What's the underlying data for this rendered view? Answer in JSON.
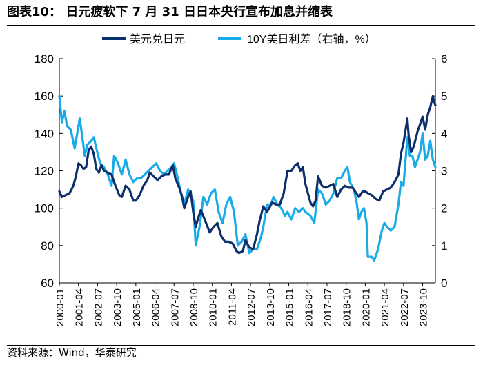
{
  "title": "图表10：   日元疲软下 7 月 31 日日本央行宣布加息并缩表",
  "source": "资料来源：Wind，华泰研究",
  "colors": {
    "usdjpy": "#0b2f6b",
    "spread": "#19aae8"
  },
  "chart_data": {
    "type": "line",
    "legend_position": "top",
    "grid": false,
    "x_ticks": [
      "2000-01",
      "2001-04",
      "2002-07",
      "2003-10",
      "2005-01",
      "2006-04",
      "2007-07",
      "2008-10",
      "2010-01",
      "2011-04",
      "2012-07",
      "2013-10",
      "2015-01",
      "2016-04",
      "2017-07",
      "2018-10",
      "2020-01",
      "2021-04",
      "2022-07",
      "2023-10"
    ],
    "x_range": [
      "2000-01",
      "2024-08"
    ],
    "y_left": {
      "min": 60,
      "max": 180,
      "ticks": [
        60,
        80,
        100,
        120,
        140,
        160,
        180
      ]
    },
    "y_right": {
      "min": 0,
      "max": 6,
      "ticks": [
        0,
        1,
        2,
        3,
        4,
        5,
        6
      ]
    },
    "series": [
      {
        "name": "美元兑日元",
        "axis": "left",
        "points": [
          [
            "2000-01",
            109
          ],
          [
            "2000-03",
            106
          ],
          [
            "2000-06",
            107
          ],
          [
            "2000-09",
            108
          ],
          [
            "2000-12",
            112
          ],
          [
            "2001-02",
            117
          ],
          [
            "2001-04",
            124
          ],
          [
            "2001-06",
            123
          ],
          [
            "2001-08",
            121
          ],
          [
            "2001-10",
            122
          ],
          [
            "2001-12",
            131
          ],
          [
            "2002-02",
            133
          ],
          [
            "2002-04",
            129
          ],
          [
            "2002-06",
            121
          ],
          [
            "2002-08",
            119
          ],
          [
            "2002-10",
            123
          ],
          [
            "2002-12",
            120
          ],
          [
            "2003-03",
            119
          ],
          [
            "2003-06",
            118
          ],
          [
            "2003-09",
            112
          ],
          [
            "2003-12",
            107
          ],
          [
            "2004-02",
            106
          ],
          [
            "2004-05",
            112
          ],
          [
            "2004-08",
            110
          ],
          [
            "2004-11",
            104
          ],
          [
            "2005-01",
            104
          ],
          [
            "2005-04",
            107
          ],
          [
            "2005-07",
            112
          ],
          [
            "2005-10",
            115
          ],
          [
            "2005-12",
            119
          ],
          [
            "2006-03",
            117
          ],
          [
            "2006-06",
            115
          ],
          [
            "2006-09",
            117
          ],
          [
            "2006-12",
            118
          ],
          [
            "2007-03",
            118
          ],
          [
            "2007-06",
            123
          ],
          [
            "2007-08",
            116
          ],
          [
            "2007-11",
            111
          ],
          [
            "2008-01",
            107
          ],
          [
            "2008-03",
            100
          ],
          [
            "2008-06",
            106
          ],
          [
            "2008-08",
            109
          ],
          [
            "2008-10",
            98
          ],
          [
            "2008-12",
            90
          ],
          [
            "2009-02",
            95
          ],
          [
            "2009-04",
            99
          ],
          [
            "2009-07",
            94
          ],
          [
            "2009-11",
            87
          ],
          [
            "2010-02",
            90
          ],
          [
            "2010-05",
            92
          ],
          [
            "2010-08",
            85
          ],
          [
            "2010-11",
            82
          ],
          [
            "2011-02",
            82
          ],
          [
            "2011-05",
            81
          ],
          [
            "2011-08",
            77
          ],
          [
            "2011-10",
            76
          ],
          [
            "2012-01",
            77
          ],
          [
            "2012-03",
            83
          ],
          [
            "2012-06",
            79
          ],
          [
            "2012-09",
            78
          ],
          [
            "2012-12",
            86
          ],
          [
            "2013-02",
            93
          ],
          [
            "2013-05",
            101
          ],
          [
            "2013-08",
            98
          ],
          [
            "2013-12",
            103
          ],
          [
            "2014-03",
            102
          ],
          [
            "2014-06",
            102
          ],
          [
            "2014-09",
            108
          ],
          [
            "2014-12",
            120
          ],
          [
            "2015-03",
            120
          ],
          [
            "2015-06",
            123
          ],
          [
            "2015-08",
            124
          ],
          [
            "2015-10",
            120
          ],
          [
            "2015-12",
            122
          ],
          [
            "2016-02",
            113
          ],
          [
            "2016-04",
            108
          ],
          [
            "2016-06",
            103
          ],
          [
            "2016-08",
            101
          ],
          [
            "2016-10",
            104
          ],
          [
            "2016-12",
            117
          ],
          [
            "2017-03",
            112
          ],
          [
            "2017-06",
            111
          ],
          [
            "2017-09",
            112
          ],
          [
            "2017-12",
            113
          ],
          [
            "2018-03",
            106
          ],
          [
            "2018-06",
            110
          ],
          [
            "2018-09",
            112
          ],
          [
            "2018-12",
            111
          ],
          [
            "2019-03",
            111
          ],
          [
            "2019-06",
            108
          ],
          [
            "2019-08",
            106
          ],
          [
            "2019-11",
            109
          ],
          [
            "2020-01",
            109
          ],
          [
            "2020-03",
            108
          ],
          [
            "2020-06",
            107
          ],
          [
            "2020-09",
            105
          ],
          [
            "2020-12",
            104
          ],
          [
            "2021-03",
            109
          ],
          [
            "2021-06",
            110
          ],
          [
            "2021-09",
            111
          ],
          [
            "2021-12",
            114
          ],
          [
            "2022-03",
            118
          ],
          [
            "2022-05",
            129
          ],
          [
            "2022-07",
            135
          ],
          [
            "2022-10",
            148
          ],
          [
            "2022-11",
            139
          ],
          [
            "2023-01",
            130
          ],
          [
            "2023-03",
            133
          ],
          [
            "2023-06",
            141
          ],
          [
            "2023-08",
            145
          ],
          [
            "2023-10",
            149
          ],
          [
            "2023-12",
            142
          ],
          [
            "2024-02",
            150
          ],
          [
            "2024-04",
            154
          ],
          [
            "2024-06",
            160
          ],
          [
            "2024-07",
            157
          ],
          [
            "2024-08",
            155
          ]
        ]
      },
      {
        "name": "10Y美日利差（右轴，%）",
        "axis": "right",
        "points": [
          [
            "2000-01",
            5.0
          ],
          [
            "2000-03",
            4.3
          ],
          [
            "2000-05",
            4.6
          ],
          [
            "2000-07",
            4.2
          ],
          [
            "2000-10",
            4.1
          ],
          [
            "2001-01",
            3.6
          ],
          [
            "2001-03",
            4.0
          ],
          [
            "2001-05",
            4.4
          ],
          [
            "2001-07",
            3.9
          ],
          [
            "2001-09",
            3.4
          ],
          [
            "2001-11",
            3.7
          ],
          [
            "2002-02",
            3.8
          ],
          [
            "2002-04",
            3.9
          ],
          [
            "2002-06",
            3.6
          ],
          [
            "2002-09",
            3.2
          ],
          [
            "2002-12",
            3.1
          ],
          [
            "2003-03",
            2.9
          ],
          [
            "2003-06",
            2.6
          ],
          [
            "2003-08",
            3.4
          ],
          [
            "2003-11",
            3.2
          ],
          [
            "2004-02",
            2.9
          ],
          [
            "2004-05",
            3.3
          ],
          [
            "2004-08",
            2.9
          ],
          [
            "2004-11",
            2.7
          ],
          [
            "2005-02",
            2.8
          ],
          [
            "2005-05",
            2.8
          ],
          [
            "2005-08",
            2.9
          ],
          [
            "2005-11",
            3.0
          ],
          [
            "2006-02",
            3.1
          ],
          [
            "2006-05",
            3.2
          ],
          [
            "2006-08",
            3.0
          ],
          [
            "2006-11",
            2.9
          ],
          [
            "2007-02",
            3.0
          ],
          [
            "2007-05",
            3.1
          ],
          [
            "2007-07",
            3.2
          ],
          [
            "2007-10",
            2.8
          ],
          [
            "2008-01",
            2.3
          ],
          [
            "2008-03",
            2.1
          ],
          [
            "2008-06",
            2.5
          ],
          [
            "2008-08",
            2.3
          ],
          [
            "2008-10",
            2.2
          ],
          [
            "2008-12",
            1.0
          ],
          [
            "2009-03",
            1.5
          ],
          [
            "2009-06",
            2.3
          ],
          [
            "2009-09",
            2.1
          ],
          [
            "2009-12",
            2.4
          ],
          [
            "2010-03",
            2.5
          ],
          [
            "2010-06",
            1.9
          ],
          [
            "2010-09",
            1.6
          ],
          [
            "2010-12",
            2.1
          ],
          [
            "2011-03",
            2.3
          ],
          [
            "2011-06",
            1.9
          ],
          [
            "2011-09",
            1.0
          ],
          [
            "2011-12",
            1.1
          ],
          [
            "2012-03",
            1.3
          ],
          [
            "2012-06",
            0.8
          ],
          [
            "2012-09",
            0.9
          ],
          [
            "2012-12",
            0.9
          ],
          [
            "2013-03",
            1.2
          ],
          [
            "2013-05",
            1.5
          ],
          [
            "2013-08",
            2.1
          ],
          [
            "2013-11",
            2.1
          ],
          [
            "2014-01",
            2.3
          ],
          [
            "2014-04",
            2.1
          ],
          [
            "2014-07",
            2.0
          ],
          [
            "2014-10",
            1.8
          ],
          [
            "2014-12",
            1.9
          ],
          [
            "2015-03",
            1.7
          ],
          [
            "2015-06",
            2.0
          ],
          [
            "2015-09",
            1.9
          ],
          [
            "2015-12",
            2.0
          ],
          [
            "2016-02",
            1.9
          ],
          [
            "2016-06",
            1.8
          ],
          [
            "2016-09",
            1.6
          ],
          [
            "2016-12",
            2.5
          ],
          [
            "2017-03",
            2.4
          ],
          [
            "2017-06",
            2.1
          ],
          [
            "2017-09",
            2.2
          ],
          [
            "2017-12",
            2.4
          ],
          [
            "2018-03",
            2.8
          ],
          [
            "2018-06",
            2.8
          ],
          [
            "2018-09",
            3.0
          ],
          [
            "2018-11",
            3.1
          ],
          [
            "2019-01",
            2.7
          ],
          [
            "2019-04",
            2.5
          ],
          [
            "2019-06",
            2.2
          ],
          [
            "2019-08",
            1.7
          ],
          [
            "2019-10",
            1.9
          ],
          [
            "2019-12",
            2.0
          ],
          [
            "2020-02",
            1.6
          ],
          [
            "2020-03",
            0.7
          ],
          [
            "2020-06",
            0.7
          ],
          [
            "2020-08",
            0.6
          ],
          [
            "2020-11",
            0.9
          ],
          [
            "2021-02",
            1.4
          ],
          [
            "2021-04",
            1.6
          ],
          [
            "2021-06",
            1.5
          ],
          [
            "2021-09",
            1.4
          ],
          [
            "2021-12",
            1.5
          ],
          [
            "2022-03",
            2.1
          ],
          [
            "2022-05",
            2.7
          ],
          [
            "2022-07",
            2.6
          ],
          [
            "2022-10",
            3.9
          ],
          [
            "2022-12",
            3.4
          ],
          [
            "2023-02",
            3.4
          ],
          [
            "2023-04",
            3.1
          ],
          [
            "2023-06",
            3.3
          ],
          [
            "2023-08",
            3.5
          ],
          [
            "2023-10",
            4.0
          ],
          [
            "2023-12",
            3.3
          ],
          [
            "2024-02",
            3.4
          ],
          [
            "2024-04",
            3.8
          ],
          [
            "2024-06",
            3.3
          ],
          [
            "2024-08",
            3.1
          ]
        ]
      }
    ]
  }
}
